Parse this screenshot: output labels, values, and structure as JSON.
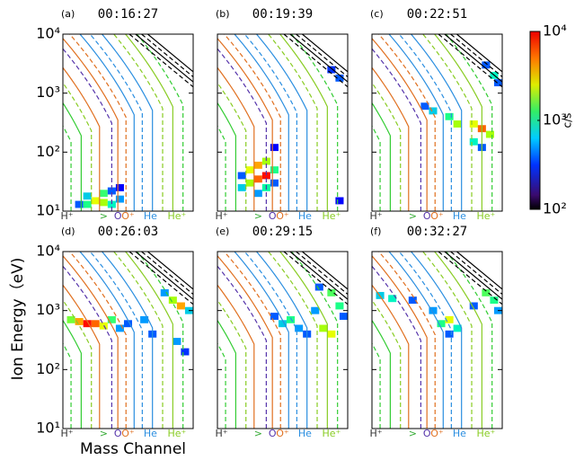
{
  "figure": {
    "ylabel": "Ion Energy（eV)",
    "xlabel": "Mass Channel",
    "colorbar": {
      "label": "c/s",
      "lim": [
        100,
        10000
      ],
      "ticks": [
        {
          "value": 100,
          "label": "10²"
        },
        {
          "value": 1000,
          "label": "10³"
        },
        {
          "value": 10000,
          "label": "10⁴"
        }
      ]
    }
  },
  "chart_data": [
    {
      "type": "heatmap",
      "panel": "(a)",
      "title": "00:16:27",
      "xlim": [
        0,
        64
      ],
      "ylim": [
        10,
        10000
      ],
      "log_y": true,
      "yticks": [
        {
          "value": 10,
          "label": "10¹"
        },
        {
          "value": 100,
          "label": "10²"
        },
        {
          "value": 1000,
          "label": "10³"
        },
        {
          "value": 10000,
          "label": "10⁴"
        }
      ],
      "xticks": [
        {
          "value": 2,
          "label": "H⁺",
          "color": "#333333"
        },
        {
          "value": 20,
          "label": ">",
          "color": "#33aa33"
        },
        {
          "value": 27,
          "label": "O",
          "color": "#5533aa"
        },
        {
          "value": 32,
          "label": "O⁺",
          "color": "#e07020"
        },
        {
          "value": 43,
          "label": "He",
          "color": "#2a8ee0"
        },
        {
          "value": 56,
          "label": "He⁺",
          "color": "#88cc22"
        }
      ],
      "cells": {
        "x": [
          8,
          12,
          16,
          20,
          24,
          28,
          12,
          20,
          24,
          28
        ],
        "y": [
          13,
          13,
          15,
          14,
          13,
          16,
          18,
          20,
          22,
          25
        ],
        "values": [
          300,
          800,
          2000,
          1500,
          600,
          400,
          500,
          900,
          300,
          200
        ]
      }
    },
    {
      "type": "heatmap",
      "panel": "(b)",
      "title": "00:19:39",
      "xlim": [
        0,
        64
      ],
      "ylim": [
        10,
        10000
      ],
      "log_y": true,
      "yticks": [
        {
          "value": 10,
          "label": "10¹"
        },
        {
          "value": 100,
          "label": "10²"
        },
        {
          "value": 1000,
          "label": "10³"
        },
        {
          "value": 10000,
          "label": "10⁴"
        }
      ],
      "xticks": [
        {
          "value": 2,
          "label": "H⁺",
          "color": "#333333"
        },
        {
          "value": 20,
          "label": ">",
          "color": "#33aa33"
        },
        {
          "value": 27,
          "label": "O",
          "color": "#5533aa"
        },
        {
          "value": 32,
          "label": "O⁺",
          "color": "#e07020"
        },
        {
          "value": 43,
          "label": "He",
          "color": "#2a8ee0"
        },
        {
          "value": 56,
          "label": "He⁺",
          "color": "#88cc22"
        }
      ],
      "cells": {
        "x": [
          12,
          16,
          20,
          24,
          16,
          20,
          24,
          28,
          12,
          20,
          24,
          28,
          28,
          60,
          56,
          60
        ],
        "y": [
          25,
          30,
          35,
          40,
          50,
          60,
          70,
          50,
          40,
          20,
          25,
          30,
          120,
          15,
          2500,
          1800
        ],
        "values": [
          500,
          1500,
          4000,
          6000,
          2000,
          3000,
          1500,
          800,
          300,
          400,
          700,
          300,
          200,
          200,
          250,
          300
        ]
      }
    },
    {
      "type": "heatmap",
      "panel": "(c)",
      "title": "00:22:51",
      "xlim": [
        0,
        64
      ],
      "ylim": [
        10,
        10000
      ],
      "log_y": true,
      "yticks": [
        {
          "value": 10,
          "label": "10¹"
        },
        {
          "value": 100,
          "label": "10²"
        },
        {
          "value": 1000,
          "label": "10³"
        },
        {
          "value": 10000,
          "label": "10⁴"
        }
      ],
      "xticks": [
        {
          "value": 2,
          "label": "H⁺",
          "color": "#333333"
        },
        {
          "value": 20,
          "label": ">",
          "color": "#33aa33"
        },
        {
          "value": 27,
          "label": "O",
          "color": "#5533aa"
        },
        {
          "value": 32,
          "label": "O⁺",
          "color": "#e07020"
        },
        {
          "value": 43,
          "label": "He",
          "color": "#2a8ee0"
        },
        {
          "value": 56,
          "label": "He⁺",
          "color": "#88cc22"
        }
      ],
      "cells": {
        "x": [
          26,
          30,
          38,
          42,
          50,
          54,
          58,
          50,
          54,
          56,
          60,
          62
        ],
        "y": [
          600,
          500,
          400,
          300,
          300,
          250,
          200,
          150,
          120,
          3000,
          2000,
          1500
        ],
        "values": [
          300,
          500,
          800,
          1500,
          2000,
          4000,
          1500,
          600,
          300,
          300,
          600,
          300
        ]
      }
    },
    {
      "type": "heatmap",
      "panel": "(d)",
      "title": "00:26:03",
      "xlim": [
        0,
        64
      ],
      "ylim": [
        10,
        10000
      ],
      "log_y": true,
      "yticks": [
        {
          "value": 10,
          "label": "10¹"
        },
        {
          "value": 100,
          "label": "10²"
        },
        {
          "value": 1000,
          "label": "10³"
        },
        {
          "value": 10000,
          "label": "10⁴"
        }
      ],
      "xticks": [
        {
          "value": 2,
          "label": "H⁺",
          "color": "#333333"
        },
        {
          "value": 20,
          "label": ">",
          "color": "#33aa33"
        },
        {
          "value": 27,
          "label": "O",
          "color": "#5533aa"
        },
        {
          "value": 32,
          "label": "O⁺",
          "color": "#e07020"
        },
        {
          "value": 43,
          "label": "He",
          "color": "#2a8ee0"
        },
        {
          "value": 56,
          "label": "He⁺",
          "color": "#88cc22"
        }
      ],
      "cells": {
        "x": [
          4,
          8,
          12,
          16,
          20,
          24,
          28,
          32,
          40,
          44,
          50,
          54,
          58,
          62,
          56,
          60
        ],
        "y": [
          700,
          650,
          600,
          600,
          550,
          700,
          500,
          600,
          700,
          400,
          2000,
          1500,
          1200,
          1000,
          300,
          200
        ],
        "values": [
          1200,
          3000,
          6000,
          4000,
          2000,
          900,
          400,
          300,
          400,
          300,
          400,
          1500,
          3000,
          500,
          400,
          250
        ]
      }
    },
    {
      "type": "heatmap",
      "panel": "(e)",
      "title": "00:29:15",
      "xlim": [
        0,
        64
      ],
      "ylim": [
        10,
        10000
      ],
      "log_y": true,
      "yticks": [
        {
          "value": 10,
          "label": "10¹"
        },
        {
          "value": 100,
          "label": "10²"
        },
        {
          "value": 1000,
          "label": "10³"
        },
        {
          "value": 10000,
          "label": "10⁴"
        }
      ],
      "xticks": [
        {
          "value": 2,
          "label": "H⁺",
          "color": "#333333"
        },
        {
          "value": 20,
          "label": ">",
          "color": "#33aa33"
        },
        {
          "value": 27,
          "label": "O",
          "color": "#5533aa"
        },
        {
          "value": 32,
          "label": "O⁺",
          "color": "#e07020"
        },
        {
          "value": 43,
          "label": "He",
          "color": "#2a8ee0"
        },
        {
          "value": 56,
          "label": "He⁺",
          "color": "#88cc22"
        }
      ],
      "cells": {
        "x": [
          28,
          32,
          36,
          40,
          44,
          48,
          52,
          56,
          50,
          56,
          60,
          62
        ],
        "y": [
          800,
          600,
          700,
          500,
          400,
          1000,
          500,
          400,
          2500,
          2000,
          1200,
          800
        ],
        "values": [
          300,
          500,
          800,
          400,
          300,
          400,
          1500,
          2000,
          300,
          1000,
          800,
          300
        ]
      }
    },
    {
      "type": "heatmap",
      "panel": "(f)",
      "title": "00:32:27",
      "xlim": [
        0,
        64
      ],
      "ylim": [
        10,
        10000
      ],
      "log_y": true,
      "yticks": [
        {
          "value": 10,
          "label": "10¹"
        },
        {
          "value": 100,
          "label": "10²"
        },
        {
          "value": 1000,
          "label": "10³"
        },
        {
          "value": 10000,
          "label": "10⁴"
        }
      ],
      "xticks": [
        {
          "value": 2,
          "label": "H⁺",
          "color": "#333333"
        },
        {
          "value": 20,
          "label": ">",
          "color": "#33aa33"
        },
        {
          "value": 27,
          "label": "O",
          "color": "#5533aa"
        },
        {
          "value": 32,
          "label": "O⁺",
          "color": "#e07020"
        },
        {
          "value": 43,
          "label": "He",
          "color": "#2a8ee0"
        },
        {
          "value": 56,
          "label": "He⁺",
          "color": "#88cc22"
        }
      ],
      "cells": {
        "x": [
          4,
          10,
          20,
          30,
          34,
          38,
          42,
          38,
          50,
          56,
          60,
          62
        ],
        "y": [
          1800,
          1600,
          1500,
          1000,
          600,
          700,
          500,
          400,
          1200,
          2000,
          1500,
          1000
        ],
        "values": [
          500,
          600,
          300,
          400,
          800,
          2000,
          600,
          300,
          300,
          1000,
          800,
          400
        ]
      }
    }
  ]
}
